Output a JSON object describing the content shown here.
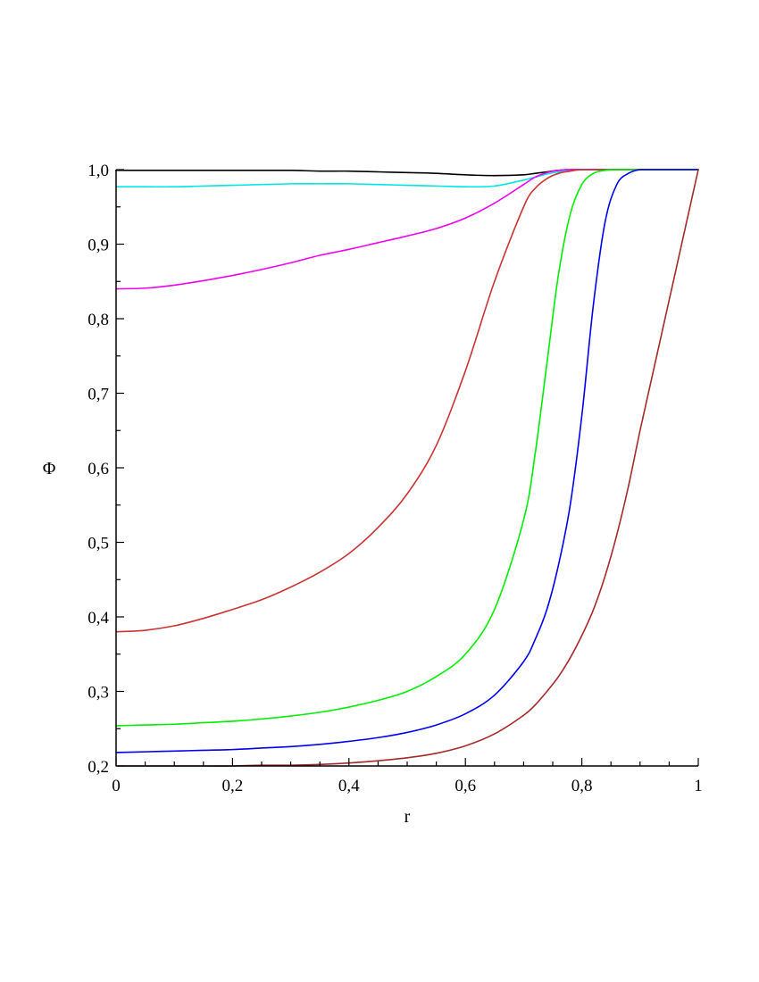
{
  "chart_data": {
    "type": "line",
    "title": "",
    "xlabel": "r",
    "ylabel": "Φ",
    "xlim": [
      0,
      1
    ],
    "ylim": [
      0.2,
      1.0
    ],
    "grid": false,
    "legend": "none",
    "x_ticks": [
      0,
      0.2,
      0.4,
      0.6,
      0.8,
      1
    ],
    "x_tick_labels": [
      "0",
      "0,2",
      "0,4",
      "0,6",
      "0,8",
      "1"
    ],
    "y_ticks": [
      0.2,
      0.3,
      0.4,
      0.5,
      0.6,
      0.7,
      0.8,
      0.9,
      1.0
    ],
    "y_tick_labels": [
      "0,2",
      "0,3",
      "0,4",
      "0,5",
      "0,6",
      "0,7",
      "0,8",
      "0,9",
      "1,0"
    ],
    "x": [
      0,
      0.05,
      0.1,
      0.15,
      0.2,
      0.25,
      0.3,
      0.35,
      0.4,
      0.45,
      0.5,
      0.55,
      0.6,
      0.65,
      0.7,
      0.72,
      0.74,
      0.76,
      0.78,
      0.8,
      0.82,
      0.84,
      0.86,
      0.88,
      0.9,
      0.92,
      0.94,
      0.96,
      0.98,
      1.0
    ],
    "series": [
      {
        "color": "#000000",
        "values": [
          0.999,
          0.999,
          0.999,
          0.999,
          0.999,
          0.999,
          0.999,
          0.998,
          0.998,
          0.997,
          0.996,
          0.995,
          0.993,
          0.992,
          0.993,
          0.995,
          0.997,
          0.999,
          1.0,
          1.0,
          1.0,
          1.0,
          1.0,
          1.0,
          1.0,
          1.0,
          1.0,
          1.0,
          1.0,
          1.0
        ]
      },
      {
        "color": "#00e5e5",
        "values": [
          0.977,
          0.977,
          0.977,
          0.978,
          0.979,
          0.98,
          0.981,
          0.981,
          0.981,
          0.98,
          0.979,
          0.978,
          0.977,
          0.978,
          0.986,
          0.99,
          0.994,
          0.997,
          0.999,
          1.0,
          1.0,
          1.0,
          1.0,
          1.0,
          1.0,
          1.0,
          1.0,
          1.0,
          1.0,
          1.0
        ]
      },
      {
        "color": "#ee00ee",
        "values": [
          0.84,
          0.841,
          0.845,
          0.851,
          0.858,
          0.866,
          0.875,
          0.885,
          0.893,
          0.902,
          0.911,
          0.921,
          0.935,
          0.955,
          0.98,
          0.99,
          0.996,
          0.999,
          1.0,
          1.0,
          1.0,
          1.0,
          1.0,
          1.0,
          1.0,
          1.0,
          1.0,
          1.0,
          1.0,
          1.0
        ]
      },
      {
        "color": "#cc3333",
        "values": [
          0.38,
          0.382,
          0.388,
          0.398,
          0.41,
          0.423,
          0.44,
          0.46,
          0.485,
          0.52,
          0.565,
          0.63,
          0.73,
          0.85,
          0.95,
          0.975,
          0.988,
          0.995,
          0.998,
          1.0,
          1.0,
          1.0,
          1.0,
          1.0,
          1.0,
          1.0,
          1.0,
          1.0,
          1.0,
          1.0
        ]
      },
      {
        "color": "#00ee00",
        "values": [
          0.254,
          0.255,
          0.256,
          0.258,
          0.26,
          0.263,
          0.267,
          0.272,
          0.279,
          0.288,
          0.3,
          0.32,
          0.35,
          0.41,
          0.53,
          0.62,
          0.74,
          0.86,
          0.94,
          0.98,
          0.995,
          0.999,
          1.0,
          1.0,
          1.0,
          1.0,
          1.0,
          1.0,
          1.0,
          1.0
        ]
      },
      {
        "color": "#0000ee",
        "values": [
          0.218,
          0.219,
          0.22,
          0.221,
          0.222,
          0.224,
          0.226,
          0.229,
          0.233,
          0.238,
          0.245,
          0.255,
          0.27,
          0.295,
          0.34,
          0.37,
          0.41,
          0.47,
          0.55,
          0.67,
          0.82,
          0.93,
          0.98,
          0.995,
          1.0,
          1.0,
          1.0,
          1.0,
          1.0,
          1.0
        ]
      },
      {
        "color": "#a52a2a",
        "values": [
          0.2,
          0.2,
          0.2,
          0.2,
          0.2,
          0.201,
          0.201,
          0.202,
          0.204,
          0.207,
          0.211,
          0.217,
          0.227,
          0.243,
          0.268,
          0.282,
          0.3,
          0.32,
          0.345,
          0.375,
          0.41,
          0.455,
          0.51,
          0.575,
          0.65,
          0.72,
          0.79,
          0.86,
          0.93,
          1.0
        ]
      }
    ]
  }
}
